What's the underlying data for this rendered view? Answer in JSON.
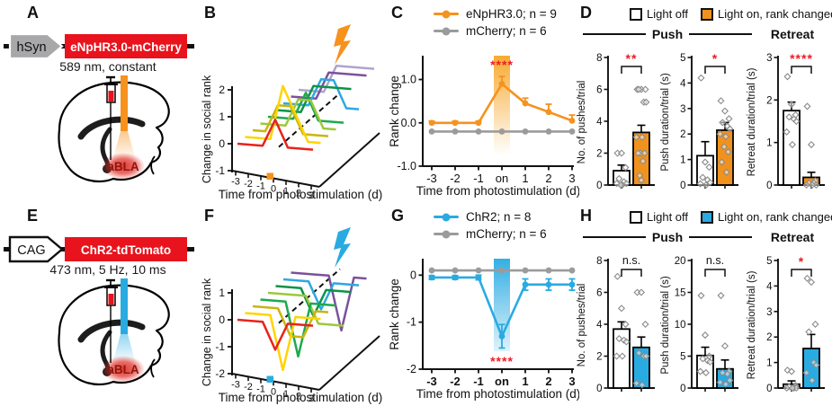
{
  "panels": {
    "a": {
      "letter": "A",
      "promoter": "hSyn",
      "gene": "eNpHR3.0-mCherry",
      "stim": "589 nm, constant",
      "region": "aBLA",
      "fiber_color": "#f6921e",
      "gene_box_color": "#e8131d",
      "promoter_fill": "#a8a8aa",
      "promoter_stroke": "#ffffff"
    },
    "b": {
      "letter": "B"
    },
    "c": {
      "letter": "C"
    },
    "d": {
      "letter": "D",
      "legend_off": "Light off",
      "legend_on": "Light on, rank changed",
      "on_color": "#f0921e",
      "group_push": "Push",
      "group_retreat": "Retreat"
    },
    "e": {
      "letter": "E",
      "promoter": "CAG",
      "gene": "ChR2-tdTomato",
      "stim": "473 nm, 5 Hz, 10 ms",
      "region": "aBLA",
      "fiber_color": "#29abe2",
      "gene_box_color": "#e8131d",
      "promoter_fill": "#ffffff",
      "promoter_stroke": "#111111"
    },
    "f": {
      "letter": "F"
    },
    "g": {
      "letter": "G"
    },
    "h": {
      "letter": "H",
      "legend_off": "Light off",
      "legend_on": "Light on, rank changed",
      "on_color": "#29abe2",
      "group_push": "Push",
      "group_retreat": "Retreat"
    }
  },
  "chart_data": [
    {
      "id": "B",
      "type": "line3d",
      "ylabel": "Change in social rank",
      "xlabel": "Time from photostimulation (d)",
      "yticks": [
        2,
        1,
        0,
        -1
      ],
      "xticks": [
        "-3",
        "-2",
        "-1",
        "0",
        "1",
        "2",
        "3"
      ],
      "stim_day": 0,
      "stim_color": "#f6921e",
      "bolt_color": "#f6921e",
      "series": [
        {
          "color": "#e8231a",
          "values": [
            0,
            0,
            0,
            1,
            0,
            0,
            0
          ]
        },
        {
          "color": "#ffd400",
          "values": [
            0,
            0,
            0,
            2,
            1,
            0,
            0
          ]
        },
        {
          "color": "#c9b50f",
          "values": [
            0,
            0,
            1,
            1,
            0,
            0,
            0
          ]
        },
        {
          "color": "#9dc83c",
          "values": [
            0,
            0,
            0,
            1,
            1,
            0,
            0
          ]
        },
        {
          "color": "#1ea94c",
          "values": [
            0,
            0,
            0,
            1,
            0,
            0,
            0
          ]
        },
        {
          "color": "#0c9347",
          "values": [
            0,
            0,
            0,
            1,
            1,
            1,
            1
          ]
        },
        {
          "color": "#2fa8e0",
          "values": [
            0,
            0,
            0,
            1,
            1,
            0,
            0
          ]
        },
        {
          "color": "#7b519c",
          "values": [
            0,
            0,
            0,
            1,
            1,
            1,
            1
          ]
        },
        {
          "color": "#b0a3cf",
          "values": [
            0,
            0,
            0,
            1,
            1,
            1,
            1
          ]
        }
      ]
    },
    {
      "id": "C",
      "type": "line",
      "ylabel": "Rank change",
      "xlabel": "Time from photostimulation (d)",
      "xticks": [
        "-3",
        "-2",
        "-1",
        "on",
        "1",
        "2",
        "3"
      ],
      "xtick_bold": false,
      "ylim": [
        -1,
        1.55
      ],
      "yticks": [
        {
          "v": 1.0,
          "label": "1.0"
        },
        {
          "v": 0.0,
          "label": "0.0"
        },
        {
          "v": -1.0,
          "label": "-1.0"
        }
      ],
      "band": {
        "index": 3,
        "color": "#f6a11c",
        "to": -0.75,
        "op": [
          0.9,
          0
        ]
      },
      "sig": {
        "text": "****",
        "color": "#ed1c24",
        "at": 1.32
      },
      "legend": [
        {
          "label": "eNpHR3.0; n = 9",
          "color": "#f6921e"
        },
        {
          "label": "mCherry; n = 6",
          "color": "#9b9b9b"
        }
      ],
      "series": [
        {
          "name": "mCherry",
          "color": "#9b9b9b",
          "values": [
            -0.2,
            -0.2,
            -0.2,
            -0.2,
            -0.2,
            -0.2,
            -0.2
          ],
          "errors": [
            0,
            0,
            0,
            0,
            0,
            0,
            0
          ],
          "err_dir": "up"
        },
        {
          "name": "eNpHR3.0",
          "color": "#f6921e",
          "values": [
            0,
            0,
            0,
            0.9,
            0.45,
            0.25,
            0.05
          ],
          "errors": [
            0.04,
            0.04,
            0.04,
            0.17,
            0.12,
            0.18,
            0.13
          ],
          "err_dir": "up"
        }
      ]
    },
    {
      "id": "D1",
      "type": "bar",
      "ylabel": "No. of pushes/trial",
      "ymax": 8,
      "yticks": [
        0,
        2,
        4,
        6,
        8
      ],
      "conditions": [
        "Light off",
        "Light on, rank changed"
      ],
      "values": [
        0.9,
        3.3
      ],
      "errors": [
        0.35,
        0.45
      ],
      "bar_colors": [
        "#ffffff",
        "#f0921e"
      ],
      "sig": {
        "text": "**",
        "color": "#ed1c24"
      },
      "points": [
        [
          2,
          2,
          1.1,
          0.4,
          0.2,
          0.1,
          0.1,
          0,
          0
        ],
        [
          6,
          6,
          6,
          6,
          5.2,
          5.2,
          3,
          3,
          2,
          2,
          2,
          1.5,
          0.6,
          0.3
        ]
      ]
    },
    {
      "id": "D2",
      "type": "bar",
      "ylabel": "Push duration/trial (s)",
      "ymax": 5,
      "yticks": [
        0,
        1,
        2,
        3,
        4,
        5
      ],
      "conditions": [
        "Light off",
        "Light on, rank changed"
      ],
      "values": [
        1.15,
        2.15
      ],
      "errors": [
        0.55,
        0.3
      ],
      "bar_colors": [
        "#ffffff",
        "#f0921e"
      ],
      "sig": {
        "text": "*",
        "color": "#ed1c24"
      },
      "points": [
        [
          4.2,
          0.9,
          0.7,
          0.3,
          0.2,
          0.1,
          0.05,
          0
        ],
        [
          3.3,
          2.9,
          2.6,
          2.45,
          2.3,
          2.2,
          2.0,
          1.9,
          1.5,
          1.3,
          0.9,
          0.5
        ]
      ]
    },
    {
      "id": "D3",
      "type": "bar",
      "ylabel": "Retreat duration/trial (s)",
      "ymax": 3,
      "yticks": [
        0,
        1,
        2,
        3
      ],
      "conditions": [
        "Light off",
        "Light on, rank changed"
      ],
      "values": [
        1.75,
        0.18
      ],
      "errors": [
        0.2,
        0.12
      ],
      "bar_colors": [
        "#ffffff",
        "#f0921e"
      ],
      "sig": {
        "text": "****",
        "color": "#ed1c24"
      },
      "points": [
        [
          2.55,
          1.9,
          1.65,
          1.6,
          1.55,
          1.5,
          1.25,
          0.95
        ],
        [
          1.85,
          0.95,
          0.1,
          0.05,
          0.05,
          0,
          0,
          0
        ]
      ]
    },
    {
      "id": "F",
      "type": "line3d",
      "ylabel": "Change in social rank",
      "xlabel": "Time from photostimulation (d)",
      "yticks": [
        1,
        0,
        -1,
        -2
      ],
      "xticks": [
        "-3",
        "-2",
        "-1",
        "0",
        "1",
        "2",
        "3"
      ],
      "stim_day": 0,
      "stim_color": "#29abe2",
      "bolt_color": "#29abe2",
      "series": [
        {
          "color": "#e8231a",
          "values": [
            0,
            0,
            0,
            -1,
            0,
            0,
            0
          ]
        },
        {
          "color": "#ffd400",
          "values": [
            0,
            0,
            0,
            -2,
            0,
            0,
            0
          ]
        },
        {
          "color": "#c9b50f",
          "values": [
            0,
            0,
            0,
            -1,
            -1,
            0,
            0
          ]
        },
        {
          "color": "#1ea94c",
          "values": [
            0,
            0,
            0,
            -2,
            0,
            0,
            0
          ]
        },
        {
          "color": "#9dc83c",
          "values": [
            0,
            0,
            0,
            0,
            -1,
            -1,
            -1
          ]
        },
        {
          "color": "#0c9347",
          "values": [
            0,
            0,
            0,
            -1,
            0,
            0,
            0
          ]
        },
        {
          "color": "#2fa8e0",
          "values": [
            0,
            0,
            0,
            -1,
            0,
            0,
            0
          ]
        },
        {
          "color": "#7b519c",
          "values": [
            0,
            0,
            0,
            0,
            -2,
            0,
            0
          ]
        }
      ]
    },
    {
      "id": "G",
      "type": "line",
      "ylabel": "Rank change",
      "xlabel": "Time from photostimulation (d)",
      "xticks": [
        "-3",
        "-2",
        "-1",
        "on",
        "1",
        "2",
        "3"
      ],
      "xtick_bold": true,
      "ylim": [
        -2,
        0.35
      ],
      "yticks": [
        {
          "v": 0,
          "label": "0"
        },
        {
          "v": -1,
          "label": "-1"
        },
        {
          "v": -2,
          "label": "-2"
        }
      ],
      "band": {
        "index": 3,
        "color": "#29abe2",
        "to": -1.62,
        "op": [
          0.95,
          0.15
        ]
      },
      "sig": {
        "text": "****",
        "color": "#ed1c24",
        "at": -1.85
      },
      "legend": [
        {
          "label": "ChR2; n = 8",
          "color": "#29abe2"
        },
        {
          "label": "mCherry; n = 6",
          "color": "#9b9b9b"
        }
      ],
      "series": [
        {
          "name": "mCherry",
          "color": "#9b9b9b",
          "values": [
            0.1,
            0.1,
            0.1,
            0.1,
            0.1,
            0.1,
            0.1
          ],
          "errors": [
            0,
            0,
            0,
            0,
            0,
            0,
            0
          ],
          "err_dir": "up"
        },
        {
          "name": "ChR2",
          "color": "#29abe2",
          "values": [
            -0.05,
            -0.05,
            -0.05,
            -1.3,
            -0.2,
            -0.2,
            -0.2
          ],
          "errors": [
            0.04,
            0.04,
            0.05,
            0.25,
            0.12,
            0.12,
            0.12
          ],
          "err_dir": "both"
        }
      ]
    },
    {
      "id": "H1",
      "type": "bar",
      "ylabel": "No. of pushes/trial",
      "ymax": 8,
      "yticks": [
        0,
        2,
        4,
        6,
        8
      ],
      "conditions": [
        "Light off",
        "Light on, rank changed"
      ],
      "values": [
        3.7,
        2.55
      ],
      "errors": [
        0.45,
        0.65
      ],
      "bar_colors": [
        "#ffffff",
        "#29abe2"
      ],
      "sig": {
        "text": "n.s.",
        "color": "#111111"
      },
      "points": [
        [
          7,
          5,
          4,
          3.1,
          3,
          2.9,
          2,
          2
        ],
        [
          6,
          6,
          4,
          2.2,
          2,
          2,
          0.3,
          0.2
        ]
      ]
    },
    {
      "id": "H2",
      "type": "bar",
      "ylabel": "Push duration/trial (s)",
      "ymax": 20,
      "yticks": [
        0,
        5,
        10,
        15,
        20
      ],
      "conditions": [
        "Light off",
        "Light on, rank changed"
      ],
      "values": [
        5.1,
        3.0
      ],
      "errors": [
        1.3,
        1.4
      ],
      "bar_colors": [
        "#ffffff",
        "#29abe2"
      ],
      "sig": {
        "text": "n.s.",
        "color": "#111111"
      },
      "points": [
        [
          14.5,
          8.3,
          5,
          4.6,
          4.3,
          4.1,
          2.6,
          2.4
        ],
        [
          14.5,
          6.6,
          2.6,
          2.4,
          2.2,
          1.2,
          0.9,
          0.6
        ]
      ]
    },
    {
      "id": "H3",
      "type": "bar",
      "ylabel": "Retreat duration/trial (s)",
      "ymax": 5,
      "yticks": [
        0,
        1,
        2,
        3,
        4,
        5
      ],
      "conditions": [
        "Light off",
        "Light on, rank changed"
      ],
      "values": [
        0.15,
        1.55
      ],
      "errors": [
        0.13,
        0.55
      ],
      "bar_colors": [
        "#ffffff",
        "#29abe2"
      ],
      "sig": {
        "text": "*",
        "color": "#ed1c24"
      },
      "points": [
        [
          0.7,
          0.65,
          0.1,
          0.05,
          0,
          0,
          0,
          0
        ],
        [
          4.3,
          4.15,
          2.5,
          2.2,
          1.0,
          0.9,
          0.6,
          0.3
        ]
      ]
    }
  ]
}
